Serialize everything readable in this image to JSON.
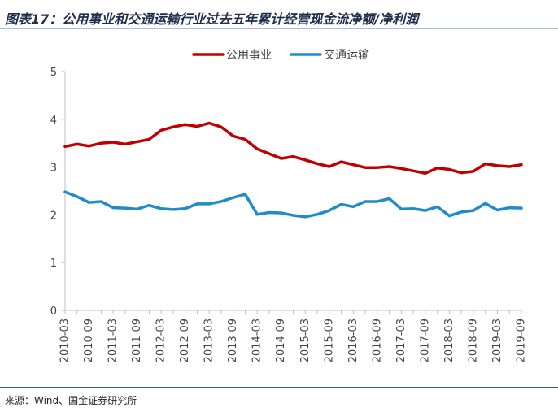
{
  "header": {
    "title": "图表17：公用事业和交通运输行业过去五年累计经营现金流净额/净利润"
  },
  "footer": {
    "source": "来源：Wind、国金证券研究所"
  },
  "colors": {
    "series1": "#c00000",
    "series2": "#1f8cc8",
    "axis": "#bfbfbf",
    "rule": "#2f5597"
  },
  "chart_data": {
    "type": "line",
    "title": "图表17：公用事业和交通运输行业过去五年累计经营现金流净额/净利润",
    "xlabel": "",
    "ylabel": "",
    "ylim": [
      0,
      5
    ],
    "yticks": [
      "0",
      "1",
      "2",
      "3",
      "4",
      "5"
    ],
    "grid": false,
    "legend_position": "top-center",
    "x": [
      "2010-03",
      "2010-06",
      "2010-09",
      "2010-12",
      "2011-03",
      "2011-06",
      "2011-09",
      "2011-12",
      "2012-03",
      "2012-06",
      "2012-09",
      "2012-12",
      "2013-03",
      "2013-06",
      "2013-09",
      "2013-12",
      "2014-03",
      "2014-06",
      "2014-09",
      "2014-12",
      "2015-03",
      "2015-06",
      "2015-09",
      "2015-12",
      "2016-03",
      "2016-06",
      "2016-09",
      "2016-12",
      "2017-03",
      "2017-06",
      "2017-09",
      "2017-12",
      "2018-03",
      "2018-06",
      "2018-09",
      "2018-12",
      "2019-03",
      "2019-06",
      "2019-09"
    ],
    "xtick_labels": [
      "2010-03",
      "2010-09",
      "2011-03",
      "2011-09",
      "2012-03",
      "2012-09",
      "2013-03",
      "2013-09",
      "2014-03",
      "2014-09",
      "2015-03",
      "2015-09",
      "2016-03",
      "2016-09",
      "2017-03",
      "2017-09",
      "2018-03",
      "2018-09",
      "2019-03",
      "2019-09"
    ],
    "series": [
      {
        "name": "公用事业",
        "values": [
          3.43,
          3.48,
          3.44,
          3.5,
          3.52,
          3.48,
          3.53,
          3.58,
          3.77,
          3.84,
          3.89,
          3.85,
          3.92,
          3.84,
          3.65,
          3.58,
          3.38,
          3.28,
          3.18,
          3.22,
          3.15,
          3.07,
          3.01,
          3.11,
          3.05,
          2.99,
          2.99,
          3.01,
          2.97,
          2.92,
          2.87,
          2.98,
          2.95,
          2.88,
          2.91,
          3.07,
          3.03,
          3.01,
          3.05
        ]
      },
      {
        "name": "交通运输",
        "values": [
          2.48,
          2.38,
          2.26,
          2.28,
          2.15,
          2.14,
          2.12,
          2.2,
          2.13,
          2.11,
          2.13,
          2.23,
          2.23,
          2.28,
          2.36,
          2.43,
          2.01,
          2.05,
          2.04,
          1.99,
          1.96,
          2.01,
          2.09,
          2.22,
          2.17,
          2.28,
          2.28,
          2.34,
          2.12,
          2.13,
          2.09,
          2.17,
          1.98,
          2.06,
          2.09,
          2.24,
          2.1,
          2.15,
          2.14
        ]
      }
    ]
  }
}
